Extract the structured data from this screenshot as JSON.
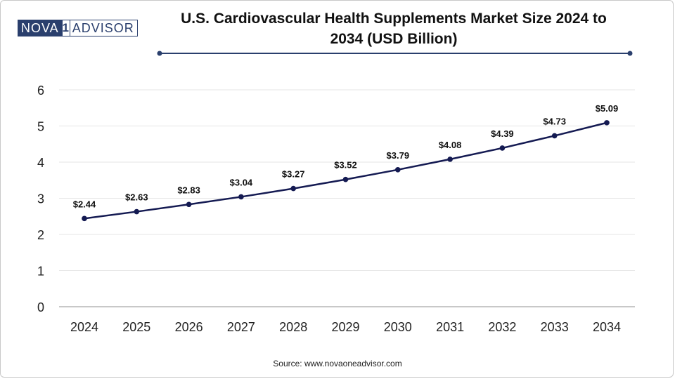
{
  "brand": {
    "logo_part1": "NOVA",
    "logo_part2": "1",
    "logo_part3": "ADVISOR"
  },
  "colors": {
    "line": "#141a52",
    "accent": "#2a3f6d",
    "grid": "#e6e6e6"
  },
  "chart_data": {
    "type": "line",
    "title_line1": "U.S. Cardiovascular Health Supplements Market Size 2024 to",
    "title_line2": "2034 (USD Billion)",
    "xlabel": "",
    "ylabel": "",
    "categories": [
      "2024",
      "2025",
      "2026",
      "2027",
      "2028",
      "2029",
      "2030",
      "2031",
      "2032",
      "2033",
      "2034"
    ],
    "series": [
      {
        "name": "Market Size (USD Billion)",
        "values": [
          2.44,
          2.63,
          2.83,
          3.04,
          3.27,
          3.52,
          3.79,
          4.08,
          4.39,
          4.73,
          5.09
        ],
        "labels": [
          "$2.44",
          "$2.63",
          "$2.83",
          "$3.04",
          "$3.27",
          "$3.52",
          "$3.79",
          "$4.08",
          "$4.39",
          "$4.73",
          "$5.09"
        ]
      }
    ],
    "ylim": [
      0,
      6
    ],
    "yticks": [
      "0",
      "1",
      "2",
      "3",
      "4",
      "5",
      "6"
    ],
    "grid": true,
    "legend": "none"
  },
  "source": "Source: www.novaoneadvisor.com"
}
